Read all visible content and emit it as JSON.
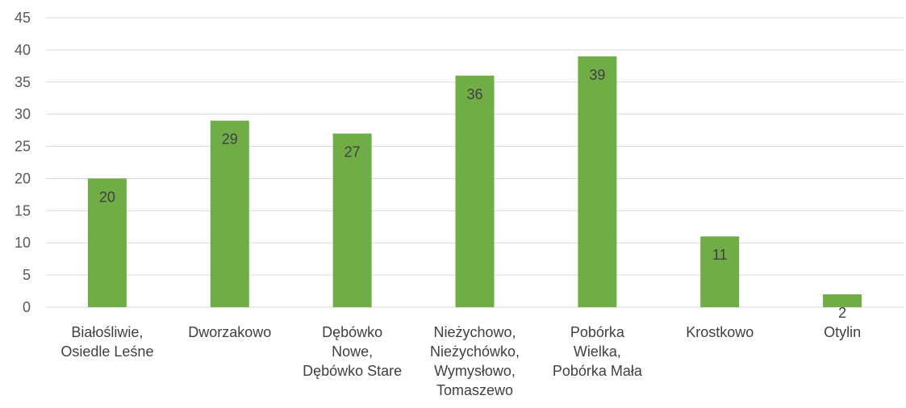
{
  "chart_data": {
    "type": "bar",
    "categories": [
      [
        "Białośliwie,",
        "Osiedle Leśne"
      ],
      [
        "Dworzakowo"
      ],
      [
        "Dębówko",
        "Nowe,",
        "Dębówko Stare"
      ],
      [
        "Nieżychowo,",
        "Nieżychówko,",
        "Wymysłowo,",
        "Tomaszewo"
      ],
      [
        "Pobórka",
        "Wielka,",
        "Pobórka Mała"
      ],
      [
        "Krostkowo"
      ],
      [
        "Otylin"
      ]
    ],
    "values": [
      20,
      29,
      27,
      36,
      39,
      11,
      2
    ],
    "data_labels": [
      "20",
      "29",
      "27",
      "36",
      "39",
      "11",
      "2"
    ],
    "ylim": [
      0,
      45
    ],
    "yticks": [
      0,
      5,
      10,
      15,
      20,
      25,
      30,
      35,
      40,
      45
    ],
    "title": "",
    "xlabel": "",
    "ylabel": "",
    "grid": true,
    "legend": "none",
    "colors": {
      "bar": "#70ad47",
      "grid": "#d9d9d9",
      "tick_text": "#595959",
      "label_text": "#404040"
    }
  }
}
